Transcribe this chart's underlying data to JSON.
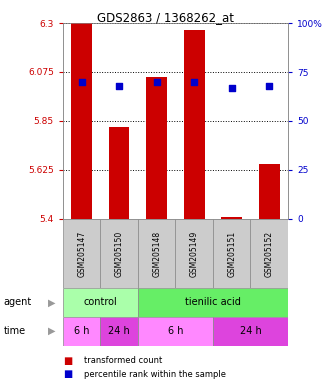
{
  "title": "GDS2863 / 1368262_at",
  "samples": [
    "GSM205147",
    "GSM205150",
    "GSM205148",
    "GSM205149",
    "GSM205151",
    "GSM205152"
  ],
  "bar_values": [
    6.3,
    5.82,
    6.05,
    6.27,
    5.41,
    5.65
  ],
  "bar_bottom": 5.4,
  "percentile_pcts": [
    70,
    68,
    70,
    70,
    67,
    68
  ],
  "ylim_left": [
    5.4,
    6.3
  ],
  "yticks_left": [
    5.4,
    5.625,
    5.85,
    6.075,
    6.3
  ],
  "ytick_labels_left": [
    "5.4",
    "5.625",
    "5.85",
    "6.075",
    "6.3"
  ],
  "ylim_right": [
    0,
    100
  ],
  "yticks_right": [
    0,
    25,
    50,
    75,
    100
  ],
  "ytick_labels_right": [
    "0",
    "25",
    "50",
    "75",
    "100%"
  ],
  "bar_color": "#cc0000",
  "dot_color": "#0000cc",
  "left_axis_color": "#cc0000",
  "right_axis_color": "#0000cc",
  "plot_bg_color": "#ffffff",
  "label_area_bg": "#cccccc",
  "agent_groups": [
    {
      "label": "control",
      "start": 0,
      "end": 2,
      "color": "#aaffaa"
    },
    {
      "label": "tienilic acid",
      "start": 2,
      "end": 6,
      "color": "#66ee66"
    }
  ],
  "time_groups": [
    {
      "label": "6 h",
      "start": 0,
      "end": 1,
      "color": "#ff88ff"
    },
    {
      "label": "24 h",
      "start": 1,
      "end": 2,
      "color": "#dd44dd"
    },
    {
      "label": "6 h",
      "start": 2,
      "end": 4,
      "color": "#ff88ff"
    },
    {
      "label": "24 h",
      "start": 4,
      "end": 6,
      "color": "#dd44dd"
    }
  ]
}
